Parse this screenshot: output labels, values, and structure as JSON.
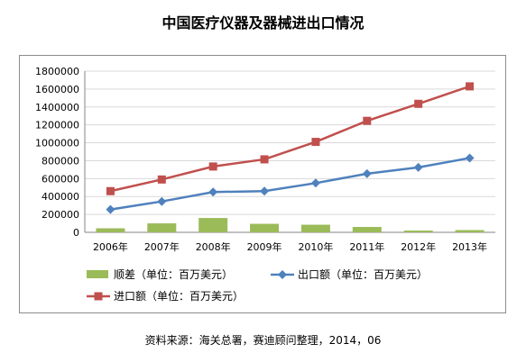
{
  "chart_data": {
    "type": "bar",
    "title": "中国医疗仪器及器械进出口情况",
    "categories": [
      "2006年",
      "2007年",
      "2008年",
      "2009年",
      "2010年",
      "2011年",
      "2012年",
      "2013年"
    ],
    "ylim": [
      0,
      1800000
    ],
    "yticks": [
      0,
      200000,
      400000,
      600000,
      800000,
      1000000,
      1200000,
      1400000,
      1600000,
      1800000
    ],
    "grid": true,
    "legend_position": "bottom",
    "series": [
      {
        "name": "顺差（单位：百万美元）",
        "type": "bar",
        "color": "#9bbb59",
        "values": [
          45000,
          100000,
          160000,
          95000,
          85000,
          60000,
          20000,
          25000
        ]
      },
      {
        "name": "出口额（单位：百万美元）",
        "type": "line",
        "marker": "diamond",
        "color": "#4f81bd",
        "values": [
          255000,
          345000,
          450000,
          460000,
          550000,
          655000,
          725000,
          830000
        ]
      },
      {
        "name": "进口额（单位：百万美元）",
        "type": "line",
        "marker": "square",
        "color": "#c0504d",
        "values": [
          460000,
          590000,
          735000,
          815000,
          1010000,
          1245000,
          1435000,
          1630000
        ]
      }
    ]
  },
  "source_note": "资料来源：海关总署，赛迪顾问整理，2014，06"
}
